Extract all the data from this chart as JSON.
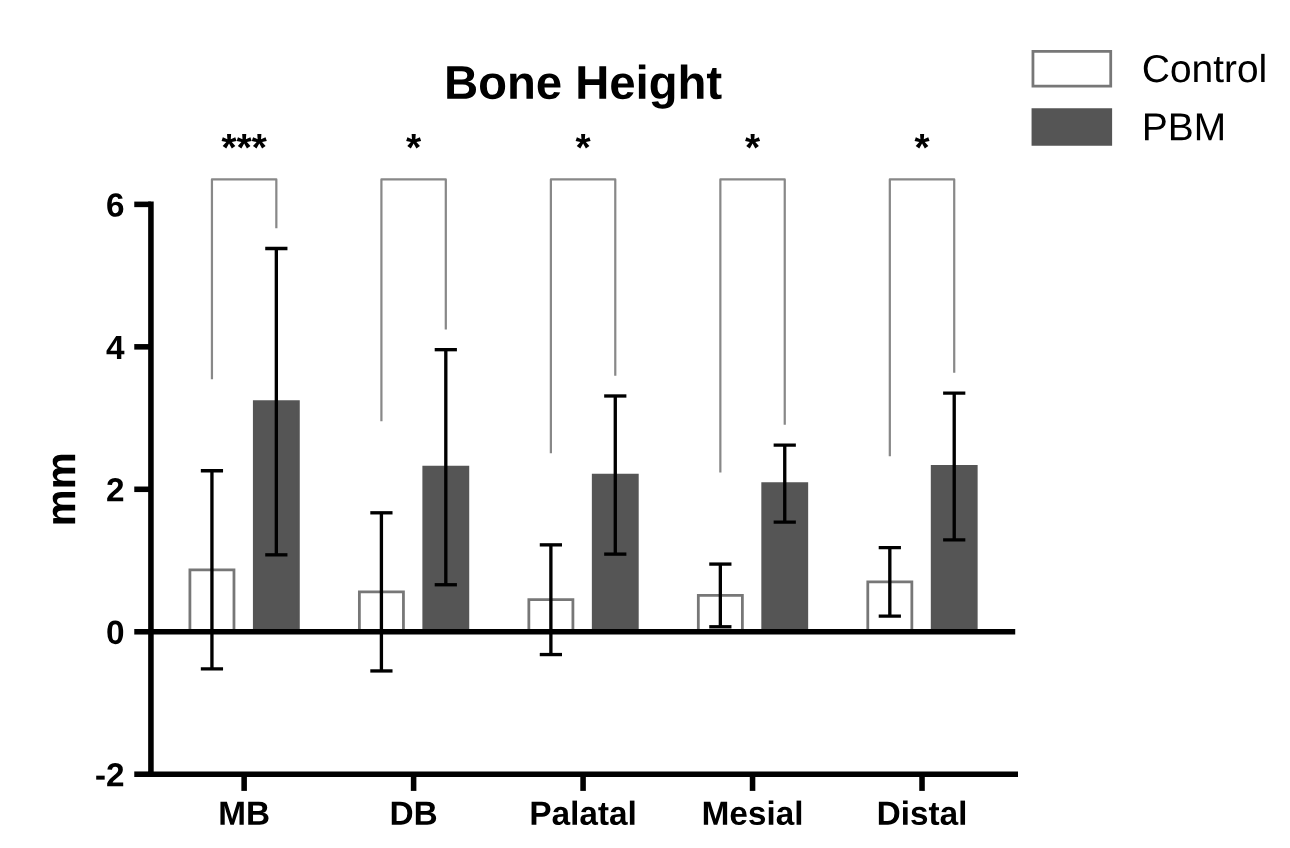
{
  "chart_data": {
    "type": "bar",
    "title": "Bone Height",
    "ylabel": "mm",
    "categories": [
      "MB",
      "DB",
      "Palatal",
      "Mesial",
      "Distal"
    ],
    "series": [
      {
        "name": "Control",
        "color": "#ffffff",
        "values": [
          0.87,
          0.56,
          0.45,
          0.51,
          0.7
        ],
        "errors": [
          1.39,
          1.11,
          0.77,
          0.44,
          0.48
        ]
      },
      {
        "name": "PBM",
        "color": "#555555",
        "values": [
          3.23,
          2.31,
          2.2,
          2.08,
          2.32
        ],
        "errors": [
          2.15,
          1.65,
          1.11,
          0.54,
          1.03
        ]
      }
    ],
    "ylim": [
      -2,
      6
    ],
    "yticks": [
      -2,
      0,
      2,
      4,
      6
    ],
    "annotations": [
      "***",
      "*",
      "*",
      "*",
      "*"
    ],
    "ref_lines": [
      {
        "axis": "y",
        "value": 0,
        "color": "#000000"
      }
    ],
    "legend": "top right",
    "grid": false
  }
}
